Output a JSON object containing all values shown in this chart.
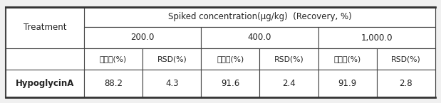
{
  "title_row": "Spiked concentration(μg/kg)  (Recovery, %)",
  "conc_headers": [
    "200.0",
    "400.0",
    "1,000.0"
  ],
  "sub_headers": [
    "회수율(%)",
    "RSD(%)",
    "회수율(%)",
    "RSD(%)",
    "회수율(%)",
    "RSD(%)"
  ],
  "treatment_label": "Treatment",
  "row_label": "HypoglycinA",
  "values": [
    "88.2",
    "4.3",
    "91.6",
    "2.4",
    "91.9",
    "2.8"
  ],
  "bg_color": "#f0f0f0",
  "header_bg": "#ffffff",
  "cell_bg": "#ffffff",
  "border_color": "#333333",
  "text_color": "#222222"
}
